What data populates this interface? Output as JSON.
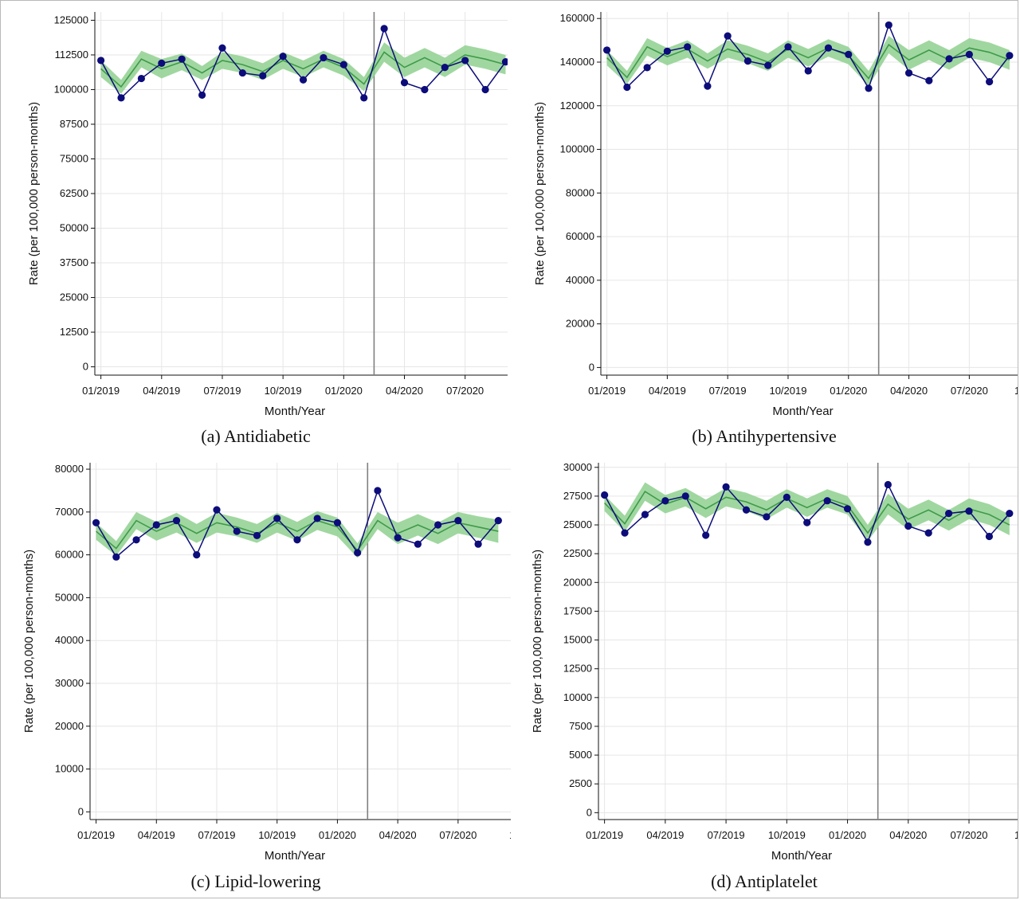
{
  "style": {
    "grid_color": "#e6e6e6",
    "axis_color": "#111111",
    "band_color": "#8fd08f",
    "fitted_line_color": "#3f9a4a",
    "observed_color": "#0c0c7a",
    "intervention_line_color": "#808080"
  },
  "chart_data": [
    {
      "type": "line",
      "caption": "(a) Antidiabetic",
      "xlabel": "Month/Year",
      "ylabel": "Rate (per 100,000 person-months)",
      "x_tick_labels": [
        "01/2019",
        "04/2019",
        "07/2019",
        "10/2019",
        "01/2020",
        "04/2020",
        "07/2020"
      ],
      "x_tick_months": [
        1,
        4,
        7,
        10,
        13,
        16,
        19
      ],
      "xlim_months": [
        0.7,
        21.1
      ],
      "intervention_month": 14.5,
      "y_ticks": [
        0,
        12500,
        25000,
        37500,
        50000,
        62500,
        75000,
        87500,
        100000,
        112500,
        125000
      ],
      "ylim": [
        -3000,
        128000
      ],
      "observed": [
        110500,
        97000,
        104000,
        109500,
        111000,
        98000,
        115000,
        106000,
        105000,
        112000,
        103500,
        111500,
        109000,
        97000,
        122000,
        102500,
        100000,
        108000,
        110500,
        100000,
        110000
      ],
      "fitted": [
        107500,
        101000,
        111000,
        107500,
        110000,
        106000,
        110500,
        109000,
        106500,
        110500,
        107500,
        111000,
        108000,
        102000,
        113500,
        108000,
        111500,
        108000,
        112500,
        111000,
        109000
      ],
      "lower": [
        104500,
        98500,
        108000,
        104000,
        107000,
        103500,
        107500,
        106000,
        103500,
        107500,
        104500,
        108000,
        105000,
        99500,
        110000,
        104500,
        108000,
        104500,
        109000,
        107500,
        105500
      ],
      "upper": [
        110500,
        103500,
        114000,
        111000,
        113000,
        108500,
        113500,
        112000,
        109500,
        113500,
        110500,
        114000,
        111000,
        104500,
        117000,
        111500,
        115000,
        111500,
        116000,
        114500,
        112500
      ]
    },
    {
      "type": "line",
      "caption": "(b) Antihypertensive",
      "xlabel": "Month/Year",
      "ylabel": "Rate (per 100,000 person-months)",
      "x_tick_labels": [
        "01/2019",
        "04/2019",
        "07/2019",
        "10/2019",
        "01/2020",
        "04/2020",
        "07/2020",
        "1"
      ],
      "x_tick_months": [
        1,
        4,
        7,
        10,
        13,
        16,
        19,
        22
      ],
      "xlim_months": [
        0.7,
        21.4
      ],
      "intervention_month": 14.5,
      "y_ticks": [
        0,
        20000,
        40000,
        60000,
        80000,
        100000,
        120000,
        140000,
        160000
      ],
      "ylim": [
        -3500,
        163000
      ],
      "observed": [
        145500,
        128500,
        137500,
        145000,
        147000,
        129000,
        152000,
        140500,
        138500,
        147000,
        136000,
        146500,
        143500,
        128000,
        157000,
        135000,
        131500,
        141500,
        143500,
        131000,
        143000
      ],
      "fitted": [
        142000,
        133000,
        147000,
        142500,
        146000,
        140500,
        146000,
        143500,
        140000,
        146000,
        142000,
        146500,
        143000,
        132500,
        148000,
        141000,
        145500,
        141000,
        146500,
        144500,
        141000
      ],
      "lower": [
        138500,
        130000,
        143000,
        138500,
        142000,
        137000,
        142000,
        139500,
        136000,
        142000,
        138000,
        142500,
        139000,
        129000,
        144000,
        136500,
        141000,
        136500,
        142000,
        140000,
        136500
      ],
      "upper": [
        145500,
        136000,
        151000,
        146500,
        150000,
        144000,
        150000,
        147500,
        144000,
        150000,
        146000,
        150500,
        147000,
        136000,
        152000,
        145500,
        150000,
        145500,
        151000,
        149000,
        145500
      ]
    },
    {
      "type": "line",
      "caption": "(c) Lipid-lowering",
      "xlabel": "Month/Year",
      "ylabel": "Rate (per 100,000 person-months)",
      "x_tick_labels": [
        "01/2019",
        "04/2019",
        "07/2019",
        "10/2019",
        "01/2020",
        "04/2020",
        "07/2020",
        "1"
      ],
      "x_tick_months": [
        1,
        4,
        7,
        10,
        13,
        16,
        19,
        22
      ],
      "xlim_months": [
        0.7,
        21.7
      ],
      "intervention_month": 14.5,
      "y_ticks": [
        0,
        10000,
        20000,
        30000,
        40000,
        50000,
        60000,
        70000,
        80000
      ],
      "ylim": [
        -1800,
        81500
      ],
      "observed": [
        67500,
        59500,
        63500,
        67000,
        68000,
        60000,
        70500,
        65500,
        64500,
        68500,
        63500,
        68500,
        67500,
        60500,
        75000,
        64000,
        62500,
        67000,
        68000,
        62500,
        68000
      ],
      "fitted": [
        65500,
        61500,
        68000,
        65500,
        67500,
        65000,
        67500,
        66500,
        65000,
        67500,
        65500,
        68000,
        66500,
        61000,
        68000,
        65000,
        67000,
        65000,
        67500,
        66500,
        65500
      ],
      "lower": [
        63500,
        59800,
        66000,
        63300,
        65200,
        62800,
        65200,
        64300,
        62800,
        65200,
        63300,
        65800,
        64300,
        59300,
        66000,
        62500,
        64500,
        62500,
        65000,
        64000,
        62800
      ],
      "upper": [
        67500,
        63200,
        70000,
        67700,
        69800,
        67200,
        69800,
        68700,
        67200,
        69800,
        67700,
        70200,
        68700,
        62700,
        70000,
        67500,
        69500,
        67500,
        70000,
        69000,
        68200
      ]
    },
    {
      "type": "line",
      "caption": "(d) Antiplatelet",
      "xlabel": "Month/Year",
      "ylabel": "Rate (per 100,000 person-months)",
      "x_tick_labels": [
        "01/2019",
        "04/2019",
        "07/2019",
        "10/2019",
        "01/2020",
        "04/2020",
        "07/2020",
        "1"
      ],
      "x_tick_months": [
        1,
        4,
        7,
        10,
        13,
        16,
        19,
        22
      ],
      "xlim_months": [
        0.7,
        21.4
      ],
      "intervention_month": 14.5,
      "y_ticks": [
        0,
        2500,
        5000,
        7500,
        10000,
        12500,
        15000,
        17500,
        20000,
        22500,
        25000,
        27500,
        30000
      ],
      "ylim": [
        -600,
        30400
      ],
      "observed": [
        27600,
        24300,
        25900,
        27100,
        27500,
        24100,
        28300,
        26300,
        25700,
        27400,
        25200,
        27100,
        26400,
        23500,
        28500,
        24900,
        24300,
        26000,
        26200,
        24000,
        26000
      ],
      "fitted": [
        26900,
        25100,
        27900,
        26800,
        27400,
        26400,
        27400,
        27000,
        26300,
        27300,
        26500,
        27300,
        26700,
        24300,
        26800,
        25500,
        26300,
        25400,
        26400,
        25900,
        25000
      ],
      "lower": [
        26200,
        24400,
        27100,
        26000,
        26600,
        25600,
        26600,
        26200,
        25500,
        26500,
        25700,
        26500,
        25900,
        23600,
        25900,
        24600,
        25400,
        24500,
        25500,
        25000,
        24100
      ],
      "upper": [
        27600,
        25800,
        28700,
        27600,
        28200,
        27200,
        28200,
        27800,
        27100,
        28100,
        27300,
        28100,
        27500,
        25000,
        27700,
        26400,
        27200,
        26300,
        27300,
        26800,
        25900
      ]
    }
  ]
}
